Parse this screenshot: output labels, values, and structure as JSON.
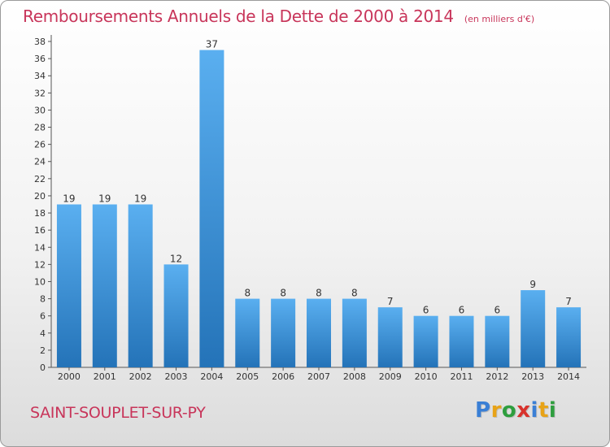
{
  "title": "Remboursements Annuels de la Dette de 2000 à 2014",
  "unit": "(en milliers d'€)",
  "commune": "SAINT-SOUPLET-SUR-PY",
  "logo": {
    "letters": [
      "P",
      "r",
      "o",
      "x",
      "i",
      "t",
      "i"
    ],
    "colors": [
      "#3a7fd5",
      "#e8a317",
      "#2e9e3e",
      "#d8322c",
      "#3a7fd5",
      "#e8a317",
      "#2e9e3e"
    ]
  },
  "colors": {
    "bar_top": "#5aaff0",
    "bar_bottom": "#2473b8",
    "title": "#c8355a"
  },
  "chart_data": {
    "type": "bar",
    "categories": [
      "2000",
      "2001",
      "2002",
      "2003",
      "2004",
      "2005",
      "2006",
      "2007",
      "2008",
      "2009",
      "2010",
      "2011",
      "2012",
      "2013",
      "2014"
    ],
    "values": [
      19,
      19,
      19,
      12,
      37,
      8,
      8,
      8,
      8,
      7,
      6,
      6,
      6,
      9,
      7
    ],
    "ylim": [
      0,
      38
    ],
    "yticks": [
      0,
      2,
      4,
      6,
      8,
      10,
      12,
      14,
      16,
      18,
      20,
      22,
      24,
      26,
      28,
      30,
      32,
      34,
      36,
      38
    ],
    "grid": false,
    "legend": "none"
  }
}
